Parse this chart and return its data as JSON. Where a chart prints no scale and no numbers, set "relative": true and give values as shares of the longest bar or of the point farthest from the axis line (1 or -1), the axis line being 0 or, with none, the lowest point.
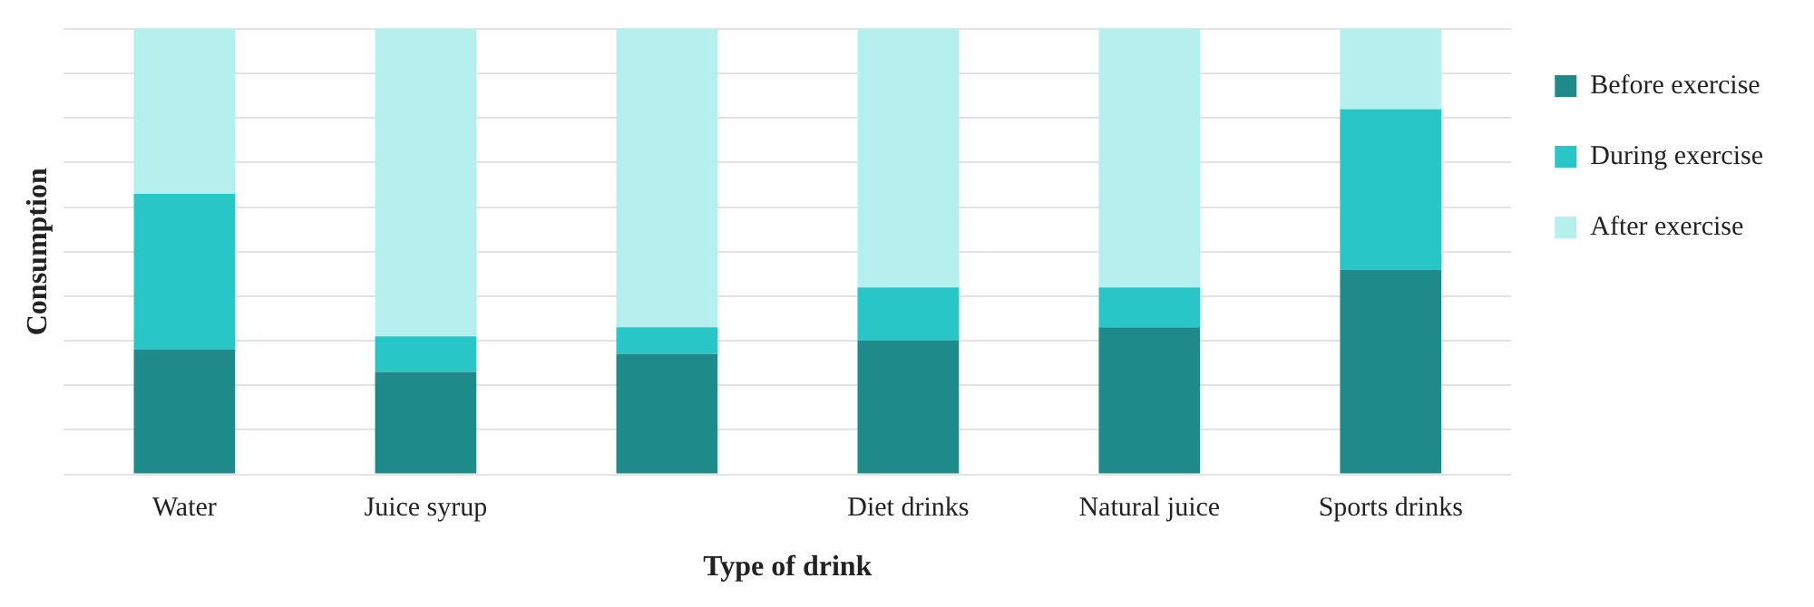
{
  "chart_data": {
    "type": "bar",
    "stacked": true,
    "relative": true,
    "xlabel": "Type of drink",
    "ylabel": "Consumption",
    "categories": [
      "Water",
      "Juice syrup",
      null,
      "Diet drinks",
      "Natural juice",
      "Sports drinks"
    ],
    "series": [
      {
        "name": "Before exercise",
        "color": "#1f8a8a",
        "values": [
          0.28,
          0.23,
          0.27,
          0.3,
          0.33,
          0.46
        ]
      },
      {
        "name": "During exercise",
        "color": "#29c6c8",
        "values": [
          0.35,
          0.08,
          0.06,
          0.12,
          0.09,
          0.36
        ]
      },
      {
        "name": "After exercise",
        "color": "#b5f0ee",
        "values": [
          0.37,
          0.69,
          0.67,
          0.58,
          0.58,
          0.18
        ]
      }
    ],
    "grid": "y",
    "legend": "top right"
  }
}
